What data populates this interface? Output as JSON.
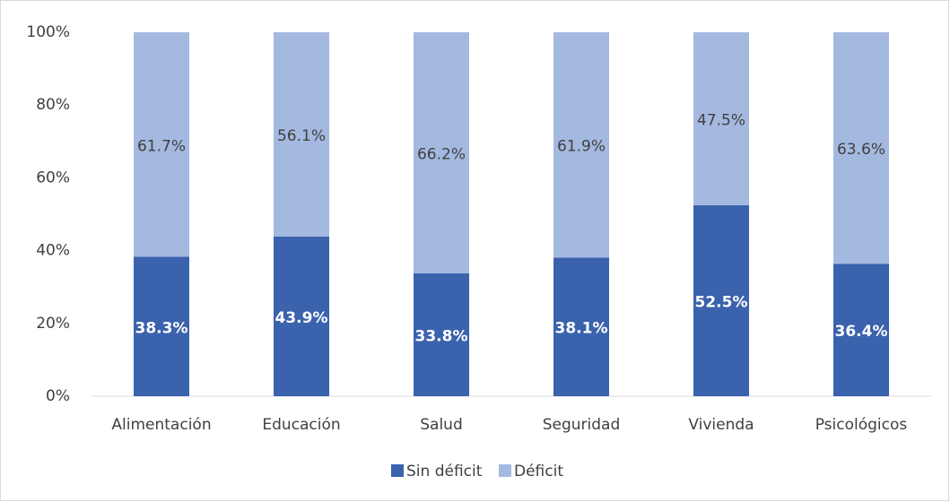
{
  "chart_data": {
    "type": "stacked_bar",
    "categories": [
      "Alimentación",
      "Educación",
      "Salud",
      "Seguridad",
      "Vivienda",
      "Psicológicos"
    ],
    "series": [
      {
        "name": "Sin déficit",
        "color": "#3a62ad",
        "values": [
          38.3,
          43.9,
          33.8,
          38.1,
          52.5,
          36.4
        ],
        "value_labels": [
          "38.3%",
          "43.9%",
          "33.8%",
          "38.1%",
          "52.5%",
          "36.4%"
        ]
      },
      {
        "name": "Déficit",
        "color": "#a4b9e0",
        "values": [
          61.7,
          56.1,
          66.2,
          61.9,
          47.5,
          63.6
        ],
        "value_labels": [
          "61.7%",
          "56.1%",
          "66.2%",
          "61.9%",
          "47.5%",
          "63.6%"
        ]
      }
    ],
    "ylim": [
      0,
      100
    ],
    "yticks": [
      {
        "value": 0,
        "label": "0%"
      },
      {
        "value": 20,
        "label": "20%"
      },
      {
        "value": 40,
        "label": "40%"
      },
      {
        "value": 60,
        "label": "60%"
      },
      {
        "value": 80,
        "label": "80%"
      },
      {
        "value": 100,
        "label": "100%"
      }
    ],
    "grid": false,
    "legend": "bottom"
  }
}
